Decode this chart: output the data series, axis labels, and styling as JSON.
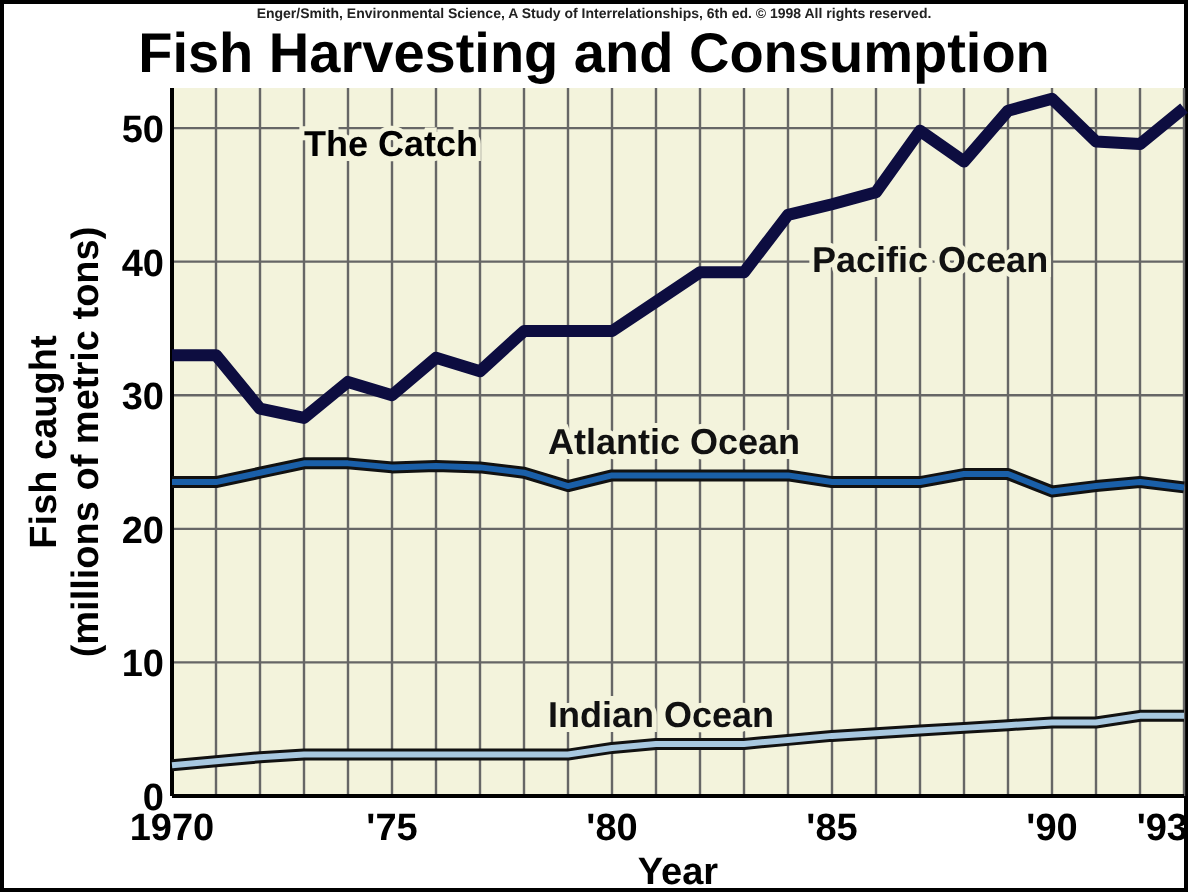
{
  "chart_data": {
    "type": "line",
    "title": "Fish Harvesting and Consumption",
    "xlabel": "Year",
    "ylabel": "Fish caught\n(millions of metric tons)",
    "annotations": [
      "Enger/Smith, Environmental Science, A Study of Interrelationships, 6th ed. © 1998 All rights reserved.",
      "The Catch"
    ],
    "x": [
      1970,
      1971,
      1972,
      1973,
      1974,
      1975,
      1976,
      1977,
      1978,
      1979,
      1980,
      1981,
      1982,
      1983,
      1984,
      1985,
      1986,
      1987,
      1988,
      1989,
      1990,
      1991,
      1992,
      1993
    ],
    "series": [
      {
        "name": "Pacific Ocean",
        "color": "#0d0d40",
        "values": [
          33,
          33,
          29,
          28.3,
          31,
          30,
          32.8,
          31.8,
          34.8,
          34.8,
          34.8,
          37,
          39.2,
          39.2,
          43.5,
          44.3,
          45.2,
          49.8,
          47.5,
          51.3,
          52.2,
          49,
          48.8,
          51.5
        ]
      },
      {
        "name": "Atlantic Ocean",
        "color": "#1a5fa8",
        "values": [
          23.5,
          23.5,
          24.2,
          24.9,
          24.9,
          24.6,
          24.7,
          24.6,
          24.2,
          23.2,
          24,
          24,
          24,
          24,
          24,
          23.5,
          23.5,
          23.5,
          24.1,
          24.1,
          22.8,
          23.2,
          23.5,
          23.1
        ]
      },
      {
        "name": "Indian Ocean",
        "color": "#a8c8e0",
        "values": [
          2.3,
          2.6,
          2.9,
          3.1,
          3.1,
          3.1,
          3.1,
          3.1,
          3.1,
          3.1,
          3.6,
          3.9,
          3.9,
          3.9,
          4.2,
          4.5,
          4.7,
          4.9,
          5.1,
          5.3,
          5.5,
          5.5,
          6,
          6
        ]
      }
    ],
    "xlim": [
      1970,
      1993
    ],
    "xticks": [
      {
        "value": 1970,
        "label": "1970"
      },
      {
        "value": 1971,
        "label": null
      },
      {
        "value": 1972,
        "label": null
      },
      {
        "value": 1973,
        "label": null
      },
      {
        "value": 1974,
        "label": null
      },
      {
        "value": 1975,
        "label": "'75"
      },
      {
        "value": 1976,
        "label": null
      },
      {
        "value": 1977,
        "label": null
      },
      {
        "value": 1978,
        "label": null
      },
      {
        "value": 1979,
        "label": null
      },
      {
        "value": 1980,
        "label": "'80"
      },
      {
        "value": 1981,
        "label": null
      },
      {
        "value": 1982,
        "label": null
      },
      {
        "value": 1983,
        "label": null
      },
      {
        "value": 1984,
        "label": null
      },
      {
        "value": 1985,
        "label": "'85"
      },
      {
        "value": 1986,
        "label": null
      },
      {
        "value": 1987,
        "label": null
      },
      {
        "value": 1988,
        "label": null
      },
      {
        "value": 1989,
        "label": null
      },
      {
        "value": 1990,
        "label": "'90"
      },
      {
        "value": 1991,
        "label": null
      },
      {
        "value": 1992,
        "label": null
      },
      {
        "value": 1993,
        "label": "'93"
      }
    ],
    "ylim": [
      0,
      53
    ],
    "yticks": [
      0,
      10,
      20,
      30,
      40,
      50
    ],
    "grid": true,
    "marker": "none",
    "line_style": "solid"
  }
}
